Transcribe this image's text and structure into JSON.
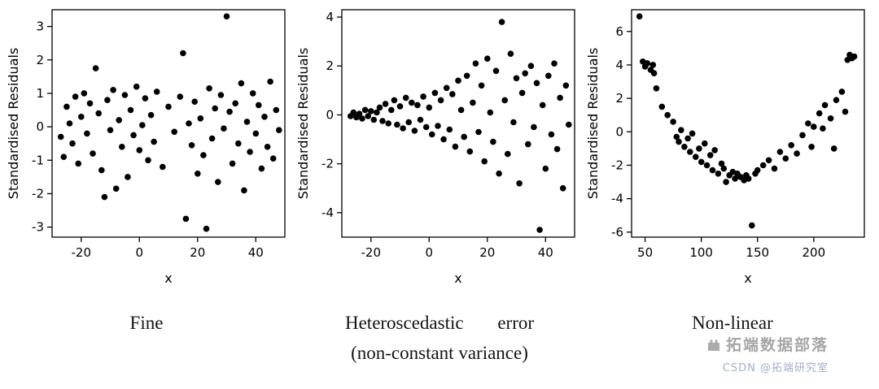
{
  "colors": {
    "point": "#000000",
    "axis": "#000000",
    "watermark_brand": "#a6a6a6",
    "watermark_credit": "#9fb1c7"
  },
  "watermark": {
    "brand": "拓端数据部落",
    "credit": "CSDN @拓端研究室"
  },
  "chart_data": [
    {
      "type": "scatter",
      "title": "",
      "xlabel": "x",
      "ylabel": "Standardised Residuals",
      "xlim": [
        -30,
        50
      ],
      "ylim": [
        -3.3,
        3.5
      ],
      "xticks": [
        -20,
        0,
        20,
        40
      ],
      "yticks": [
        -3,
        -2,
        -1,
        0,
        1,
        2,
        3
      ],
      "grid": false,
      "legend": "none",
      "caption_lines": [
        "Fine"
      ],
      "points": [
        [
          -27,
          -0.3
        ],
        [
          -26,
          -0.9
        ],
        [
          -25,
          0.6
        ],
        [
          -24,
          0.1
        ],
        [
          -23,
          -0.5
        ],
        [
          -22,
          0.9
        ],
        [
          -21,
          -1.1
        ],
        [
          -20,
          0.3
        ],
        [
          -19,
          1.0
        ],
        [
          -18,
          -0.2
        ],
        [
          -17,
          0.7
        ],
        [
          -16,
          -0.8
        ],
        [
          -15,
          1.75
        ],
        [
          -14,
          0.4
        ],
        [
          -13,
          -1.3
        ],
        [
          -12,
          -2.1
        ],
        [
          -11,
          0.8
        ],
        [
          -10,
          -0.1
        ],
        [
          -9,
          1.1
        ],
        [
          -8,
          -1.85
        ],
        [
          -7,
          0.2
        ],
        [
          -6,
          -0.6
        ],
        [
          -5,
          0.95
        ],
        [
          -4,
          -1.5
        ],
        [
          -3,
          0.5
        ],
        [
          -2,
          -0.25
        ],
        [
          -1,
          1.2
        ],
        [
          0,
          -0.7
        ],
        [
          1,
          0.05
        ],
        [
          2,
          0.85
        ],
        [
          3,
          -1.0
        ],
        [
          4,
          0.35
        ],
        [
          5,
          -0.45
        ],
        [
          6,
          1.05
        ],
        [
          8,
          -1.2
        ],
        [
          10,
          0.6
        ],
        [
          12,
          -0.15
        ],
        [
          14,
          0.9
        ],
        [
          15,
          2.2
        ],
        [
          16,
          -2.75
        ],
        [
          17,
          0.1
        ],
        [
          18,
          -0.55
        ],
        [
          19,
          0.75
        ],
        [
          20,
          -1.4
        ],
        [
          21,
          0.25
        ],
        [
          22,
          -0.85
        ],
        [
          23,
          -3.05
        ],
        [
          24,
          1.15
        ],
        [
          25,
          -0.35
        ],
        [
          26,
          0.55
        ],
        [
          27,
          -1.65
        ],
        [
          28,
          0.95
        ],
        [
          29,
          -0.05
        ],
        [
          30,
          3.3
        ],
        [
          31,
          0.45
        ],
        [
          32,
          -1.1
        ],
        [
          33,
          0.7
        ],
        [
          34,
          -0.5
        ],
        [
          35,
          1.3
        ],
        [
          36,
          -1.9
        ],
        [
          37,
          0.15
        ],
        [
          38,
          -0.75
        ],
        [
          39,
          1.0
        ],
        [
          40,
          -0.2
        ],
        [
          41,
          0.65
        ],
        [
          42,
          -1.25
        ],
        [
          43,
          0.3
        ],
        [
          44,
          -0.6
        ],
        [
          45,
          1.35
        ],
        [
          46,
          -0.95
        ],
        [
          47,
          0.5
        ],
        [
          48,
          -0.1
        ]
      ]
    },
    {
      "type": "scatter",
      "title": "",
      "xlabel": "x",
      "ylabel": "Standardised Residuals",
      "xlim": [
        -30,
        50
      ],
      "ylim": [
        -5.0,
        4.3
      ],
      "xticks": [
        -20,
        0,
        20,
        40
      ],
      "yticks": [
        -4,
        -2,
        0,
        2,
        4
      ],
      "grid": false,
      "legend": "none",
      "caption_lines": [
        "Heteroscedastic error",
        "(non-constant variance)"
      ],
      "points": [
        [
          -27,
          -0.05
        ],
        [
          -26,
          0.1
        ],
        [
          -25,
          -0.1
        ],
        [
          -24,
          0.05
        ],
        [
          -23,
          -0.15
        ],
        [
          -22,
          0.2
        ],
        [
          -21,
          -0.05
        ],
        [
          -20,
          0.15
        ],
        [
          -19,
          -0.2
        ],
        [
          -18,
          0.1
        ],
        [
          -17,
          0.3
        ],
        [
          -16,
          -0.25
        ],
        [
          -15,
          0.45
        ],
        [
          -14,
          -0.35
        ],
        [
          -13,
          0.2
        ],
        [
          -12,
          0.6
        ],
        [
          -11,
          -0.4
        ],
        [
          -10,
          0.35
        ],
        [
          -9,
          -0.55
        ],
        [
          -8,
          0.7
        ],
        [
          -7,
          -0.3
        ],
        [
          -6,
          0.5
        ],
        [
          -5,
          -0.65
        ],
        [
          -4,
          0.4
        ],
        [
          -3,
          -0.2
        ],
        [
          -2,
          0.75
        ],
        [
          -1,
          -0.5
        ],
        [
          0,
          0.3
        ],
        [
          1,
          -0.8
        ],
        [
          2,
          0.9
        ],
        [
          3,
          -0.45
        ],
        [
          4,
          0.6
        ],
        [
          5,
          -1.0
        ],
        [
          6,
          1.1
        ],
        [
          7,
          -0.6
        ],
        [
          8,
          0.85
        ],
        [
          9,
          -1.3
        ],
        [
          10,
          1.4
        ],
        [
          11,
          0.2
        ],
        [
          12,
          -0.9
        ],
        [
          13,
          1.6
        ],
        [
          14,
          -1.5
        ],
        [
          15,
          0.5
        ],
        [
          16,
          2.1
        ],
        [
          17,
          -0.7
        ],
        [
          18,
          1.2
        ],
        [
          19,
          -1.9
        ],
        [
          20,
          2.3
        ],
        [
          21,
          0.1
        ],
        [
          22,
          -1.1
        ],
        [
          23,
          1.8
        ],
        [
          24,
          -2.4
        ],
        [
          25,
          3.8
        ],
        [
          26,
          0.6
        ],
        [
          27,
          -1.6
        ],
        [
          28,
          2.5
        ],
        [
          29,
          -0.3
        ],
        [
          30,
          1.5
        ],
        [
          31,
          -2.8
        ],
        [
          32,
          0.9
        ],
        [
          33,
          1.7
        ],
        [
          34,
          -1.2
        ],
        [
          35,
          2.0
        ],
        [
          36,
          -0.5
        ],
        [
          37,
          1.3
        ],
        [
          38,
          -4.7
        ],
        [
          39,
          0.4
        ],
        [
          40,
          -2.2
        ],
        [
          41,
          1.6
        ],
        [
          42,
          -0.8
        ],
        [
          43,
          2.1
        ],
        [
          44,
          -1.4
        ],
        [
          45,
          0.7
        ],
        [
          46,
          -3.0
        ],
        [
          47,
          1.2
        ],
        [
          48,
          -0.4
        ]
      ]
    },
    {
      "type": "scatter",
      "title": "",
      "xlabel": "x",
      "ylabel": "Standardised Residuals",
      "xlim": [
        38,
        245
      ],
      "ylim": [
        -6.3,
        7.3
      ],
      "xticks": [
        50,
        100,
        150,
        200
      ],
      "yticks": [
        -6,
        -4,
        -2,
        0,
        2,
        4,
        6
      ],
      "grid": false,
      "legend": "none",
      "caption_lines": [
        "Non-linear"
      ],
      "points": [
        [
          45,
          6.9
        ],
        [
          48,
          4.2
        ],
        [
          50,
          3.9
        ],
        [
          52,
          4.1
        ],
        [
          55,
          3.7
        ],
        [
          57,
          4.0
        ],
        [
          58,
          3.5
        ],
        [
          60,
          2.6
        ],
        [
          65,
          1.5
        ],
        [
          70,
          1.0
        ],
        [
          75,
          0.6
        ],
        [
          78,
          -0.3
        ],
        [
          80,
          -0.6
        ],
        [
          82,
          0.1
        ],
        [
          85,
          -0.9
        ],
        [
          88,
          -0.4
        ],
        [
          90,
          -1.2
        ],
        [
          92,
          -0.1
        ],
        [
          95,
          -1.5
        ],
        [
          98,
          -1.0
        ],
        [
          100,
          -1.8
        ],
        [
          103,
          -0.7
        ],
        [
          105,
          -2.0
        ],
        [
          108,
          -1.4
        ],
        [
          110,
          -2.3
        ],
        [
          112,
          -1.1
        ],
        [
          115,
          -2.5
        ],
        [
          118,
          -1.9
        ],
        [
          120,
          -2.2
        ],
        [
          122,
          -3.0
        ],
        [
          125,
          -2.6
        ],
        [
          128,
          -2.4
        ],
        [
          130,
          -2.8
        ],
        [
          132,
          -2.5
        ],
        [
          135,
          -2.7
        ],
        [
          138,
          -2.9
        ],
        [
          140,
          -2.6
        ],
        [
          142,
          -2.8
        ],
        [
          145,
          -5.6
        ],
        [
          148,
          -2.5
        ],
        [
          150,
          -2.3
        ],
        [
          155,
          -2.0
        ],
        [
          160,
          -1.7
        ],
        [
          165,
          -2.2
        ],
        [
          170,
          -1.2
        ],
        [
          175,
          -1.6
        ],
        [
          180,
          -0.8
        ],
        [
          185,
          -1.3
        ],
        [
          190,
          -0.2
        ],
        [
          195,
          0.5
        ],
        [
          198,
          -0.9
        ],
        [
          200,
          0.3
        ],
        [
          205,
          1.1
        ],
        [
          208,
          0.2
        ],
        [
          210,
          1.6
        ],
        [
          215,
          0.8
        ],
        [
          218,
          -1.0
        ],
        [
          220,
          1.9
        ],
        [
          225,
          2.4
        ],
        [
          228,
          1.2
        ],
        [
          230,
          4.3
        ],
        [
          232,
          4.6
        ],
        [
          234,
          4.4
        ],
        [
          236,
          4.5
        ]
      ]
    }
  ]
}
